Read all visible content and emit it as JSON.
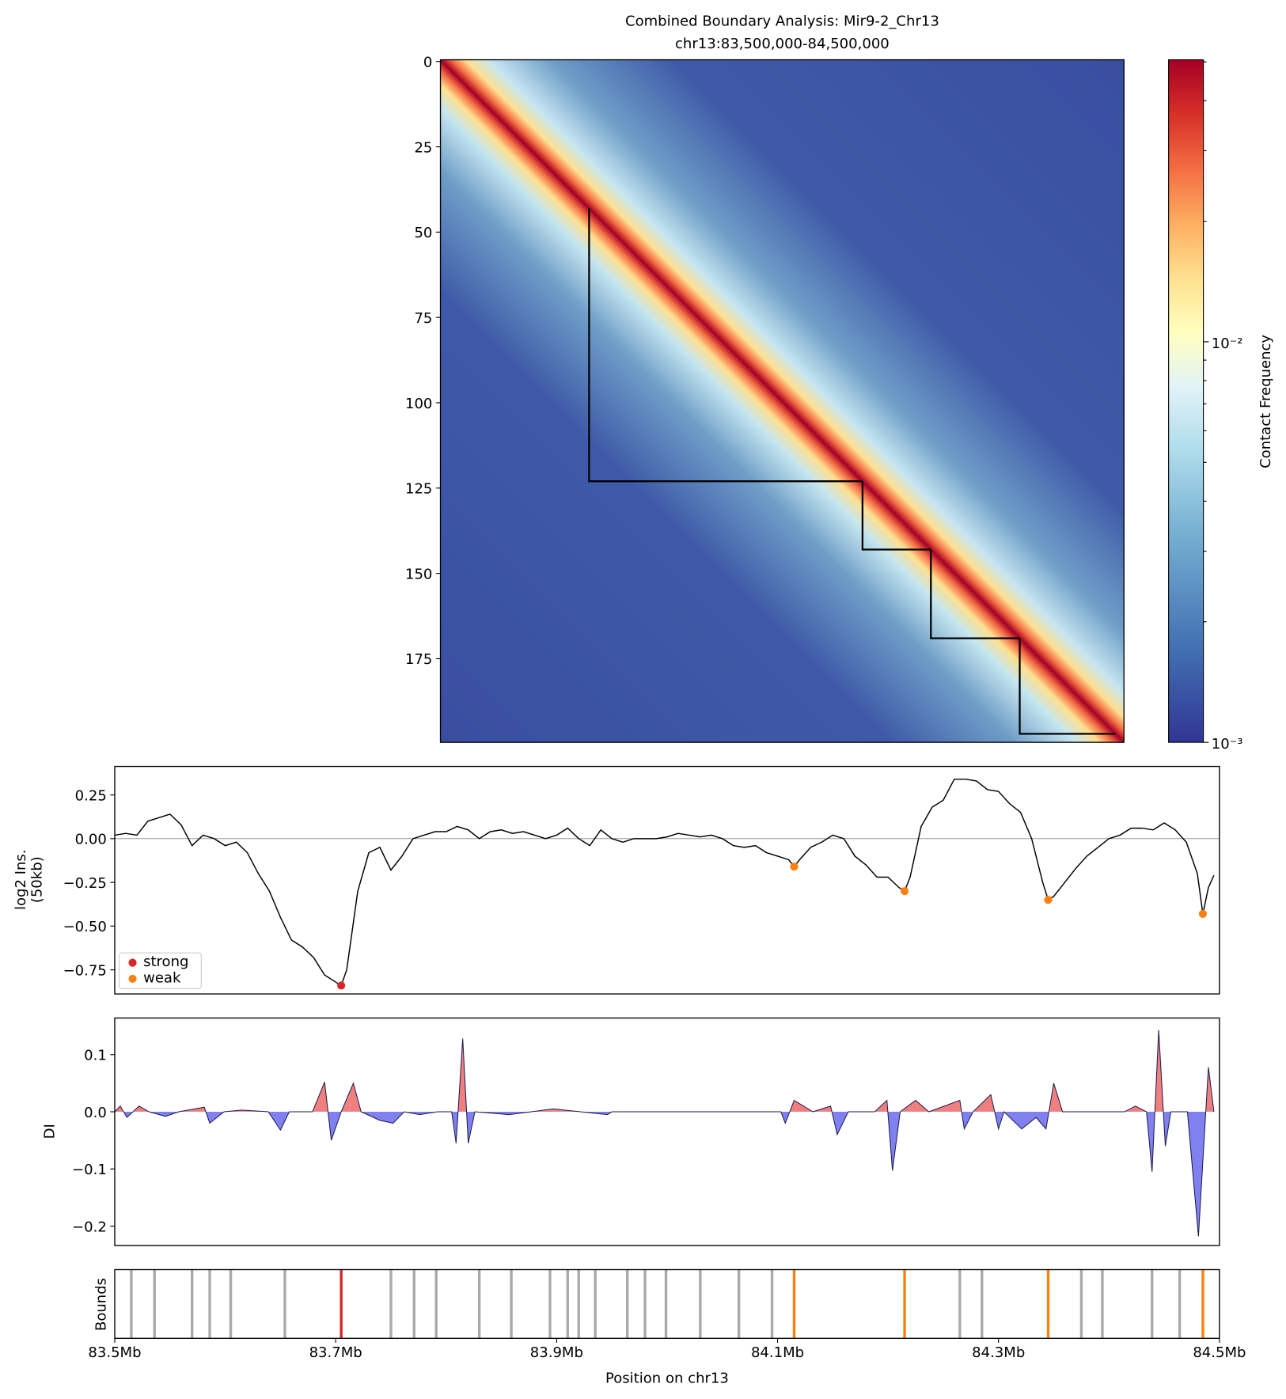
{
  "chart_data": [
    {
      "type": "heatmap",
      "title": "Combined Boundary Analysis: Mir9-2_Chr13",
      "subtitle": "chr13:83,500,000-84,500,000",
      "xlim": [
        -0.5,
        199.5
      ],
      "ylim": [
        199.5,
        -0.5
      ],
      "yticks": [
        0,
        25,
        50,
        75,
        100,
        125,
        150,
        175
      ],
      "domains": [
        [
          43,
          123
        ],
        [
          123,
          143
        ],
        [
          143,
          169
        ],
        [
          169,
          197
        ]
      ],
      "colorbar": {
        "label": "Contact Frequency",
        "log_scale": true,
        "lim": [
          0.001,
          0.0506
        ],
        "ticks": [
          {
            "value": 0.001,
            "label": "10⁻³"
          },
          {
            "value": 0.01,
            "label": "10⁻²"
          }
        ],
        "minor_ticks": [
          0.002,
          0.003,
          0.004,
          0.005,
          0.006,
          0.007,
          0.008,
          0.009,
          0.02,
          0.03,
          0.04,
          0.05
        ]
      }
    },
    {
      "type": "line",
      "ylabel": [
        "log2 Ins.",
        "(50kb)"
      ],
      "xlim": [
        83.5,
        84.5
      ],
      "ylim": [
        -0.888,
        0.413
      ],
      "yticks": [
        {
          "value": 0.25,
          "label": "0.25"
        },
        {
          "value": 0,
          "label": "0.00"
        },
        {
          "value": -0.25,
          "label": "−0.25"
        },
        {
          "value": -0.5,
          "label": "−0.50"
        },
        {
          "value": -0.75,
          "label": "−0.75"
        }
      ],
      "hline": 0,
      "color": "#000000",
      "legend": "lower left",
      "x": [
        83.5,
        83.51,
        83.52,
        83.53,
        83.54,
        83.55,
        83.56,
        83.57,
        83.58,
        83.59,
        83.6,
        83.61,
        83.62,
        83.63,
        83.64,
        83.65,
        83.66,
        83.67,
        83.68,
        83.69,
        83.7,
        83.705,
        83.71,
        83.72,
        83.73,
        83.74,
        83.75,
        83.76,
        83.77,
        83.78,
        83.79,
        83.8,
        83.81,
        83.82,
        83.83,
        83.84,
        83.85,
        83.86,
        83.87,
        83.88,
        83.89,
        83.9,
        83.91,
        83.92,
        83.93,
        83.94,
        83.95,
        83.96,
        83.97,
        83.98,
        83.99,
        84.0,
        84.01,
        84.02,
        84.03,
        84.04,
        84.05,
        84.06,
        84.07,
        84.08,
        84.09,
        84.1,
        84.11,
        84.115,
        84.12,
        84.13,
        84.14,
        84.15,
        84.16,
        84.17,
        84.18,
        84.19,
        84.2,
        84.21,
        84.215,
        84.22,
        84.23,
        84.24,
        84.25,
        84.26,
        84.27,
        84.28,
        84.29,
        84.3,
        84.31,
        84.32,
        84.33,
        84.34,
        84.345,
        84.35,
        84.36,
        84.37,
        84.38,
        84.39,
        84.4,
        84.41,
        84.42,
        84.43,
        84.44,
        84.45,
        84.46,
        84.47,
        84.48,
        84.485,
        84.49,
        84.495
      ],
      "values": [
        0.02,
        0.03,
        0.02,
        0.1,
        0.12,
        0.14,
        0.08,
        -0.04,
        0.02,
        0.0,
        -0.04,
        -0.02,
        -0.08,
        -0.2,
        -0.3,
        -0.45,
        -0.58,
        -0.62,
        -0.68,
        -0.78,
        -0.82,
        -0.84,
        -0.75,
        -0.3,
        -0.08,
        -0.05,
        -0.18,
        -0.1,
        0.0,
        0.02,
        0.04,
        0.04,
        0.07,
        0.05,
        0.0,
        0.04,
        0.05,
        0.03,
        0.04,
        0.02,
        0.0,
        0.02,
        0.06,
        0.0,
        -0.04,
        0.05,
        0.0,
        -0.02,
        0.0,
        0.0,
        0.0,
        0.01,
        0.03,
        0.02,
        0.01,
        0.02,
        0.0,
        -0.04,
        -0.05,
        -0.04,
        -0.08,
        -0.1,
        -0.12,
        -0.16,
        -0.12,
        -0.05,
        -0.02,
        0.02,
        0.0,
        -0.1,
        -0.15,
        -0.22,
        -0.22,
        -0.28,
        -0.3,
        -0.22,
        0.07,
        0.18,
        0.22,
        0.34,
        0.34,
        0.33,
        0.28,
        0.27,
        0.2,
        0.15,
        0.0,
        -0.25,
        -0.35,
        -0.33,
        -0.25,
        -0.17,
        -0.1,
        -0.05,
        0.0,
        0.02,
        0.06,
        0.06,
        0.05,
        0.09,
        0.05,
        -0.02,
        -0.2,
        -0.43,
        -0.28,
        -0.21
      ],
      "markers": [
        {
          "name": "strong",
          "color": "#d62728",
          "x": [
            83.705
          ],
          "values": [
            -0.84
          ]
        },
        {
          "name": "weak",
          "color": "#ff7f0e",
          "x": [
            84.115,
            84.215,
            84.345,
            84.485
          ],
          "values": [
            -0.16,
            -0.3,
            -0.35,
            -0.43
          ]
        }
      ]
    },
    {
      "type": "area",
      "ylabel": "DI",
      "xlim": [
        83.5,
        84.5
      ],
      "ylim": [
        -0.234,
        0.164
      ],
      "yticks": [
        0.1,
        {
          "value": 0,
          "label": "0.0"
        },
        {
          "value": -0.1,
          "label": "−0.1"
        },
        {
          "value": -0.2,
          "label": "−0.2"
        }
      ],
      "pos_color": "#f08080",
      "neg_color": "#8080f0",
      "color": "#1a1a4a",
      "x": [
        83.5,
        83.505,
        83.511,
        83.522,
        83.531,
        83.546,
        83.558,
        83.581,
        83.586,
        83.599,
        83.615,
        83.639,
        83.65,
        83.658,
        83.679,
        83.69,
        83.696,
        83.705,
        83.716,
        83.723,
        83.74,
        83.752,
        83.762,
        83.776,
        83.792,
        83.805,
        83.809,
        83.815,
        83.82,
        83.826,
        83.857,
        83.897,
        83.946,
        83.95,
        83.962,
        84.011,
        84.067,
        84.103,
        84.107,
        84.115,
        84.132,
        84.148,
        84.154,
        84.164,
        84.188,
        84.199,
        84.204,
        84.211,
        84.225,
        84.237,
        84.265,
        84.269,
        84.277,
        84.293,
        84.3,
        84.305,
        84.321,
        84.334,
        84.343,
        84.35,
        84.358,
        84.386,
        84.414,
        84.424,
        84.434,
        84.439,
        84.445,
        84.451,
        84.456,
        84.471,
        84.481,
        84.49,
        84.495
      ],
      "values": [
        0.0,
        0.01,
        -0.01,
        0.01,
        0.0,
        -0.008,
        0.0,
        0.008,
        -0.02,
        0.0,
        0.003,
        0.0,
        -0.032,
        0.0,
        0.0,
        0.052,
        -0.05,
        0.0,
        0.05,
        0.0,
        -0.015,
        -0.02,
        0.0,
        -0.005,
        0.0,
        0.0,
        -0.055,
        0.128,
        -0.055,
        0.0,
        -0.005,
        0.005,
        -0.005,
        0.0,
        0.0,
        0.0,
        0.0,
        0.0,
        -0.02,
        0.02,
        0.0,
        0.01,
        -0.04,
        0.0,
        0.0,
        0.02,
        -0.103,
        0.0,
        0.02,
        0.0,
        0.02,
        -0.03,
        0.0,
        0.03,
        -0.03,
        0.0,
        -0.03,
        -0.01,
        -0.03,
        0.05,
        0.0,
        0.0,
        0.0,
        0.01,
        0.0,
        -0.105,
        0.143,
        -0.06,
        0.0,
        0.0,
        -0.218,
        0.078,
        0.0
      ]
    },
    {
      "type": "vlines",
      "ylabel": "Bounds",
      "xlabel": "Position on chr13",
      "xlim": [
        83.5,
        84.5
      ],
      "xticks": [
        {
          "value": 83.5,
          "label": "83.5Mb"
        },
        {
          "value": 83.7,
          "label": "83.7Mb"
        },
        {
          "value": 83.9,
          "label": "83.9Mb"
        },
        {
          "value": 84.1,
          "label": "84.1Mb"
        },
        {
          "value": 84.3,
          "label": "84.3Mb"
        },
        {
          "value": 84.5,
          "label": "84.5Mb"
        }
      ],
      "groups": [
        {
          "color": "#aaaaaa",
          "x": [
            83.515,
            83.536,
            83.57,
            83.586,
            83.605,
            83.654,
            83.75,
            83.771,
            83.791,
            83.83,
            83.859,
            83.894,
            83.91,
            83.92,
            83.935,
            83.964,
            83.98,
            83.999,
            84.03,
            84.065,
            84.095,
            84.265,
            84.285,
            84.375,
            84.394,
            84.439,
            84.464
          ]
        },
        {
          "color": "#d62728",
          "x": [
            83.705
          ]
        },
        {
          "color": "#ff7f0e",
          "x": [
            84.115,
            84.215,
            84.345,
            84.485
          ]
        }
      ]
    }
  ]
}
